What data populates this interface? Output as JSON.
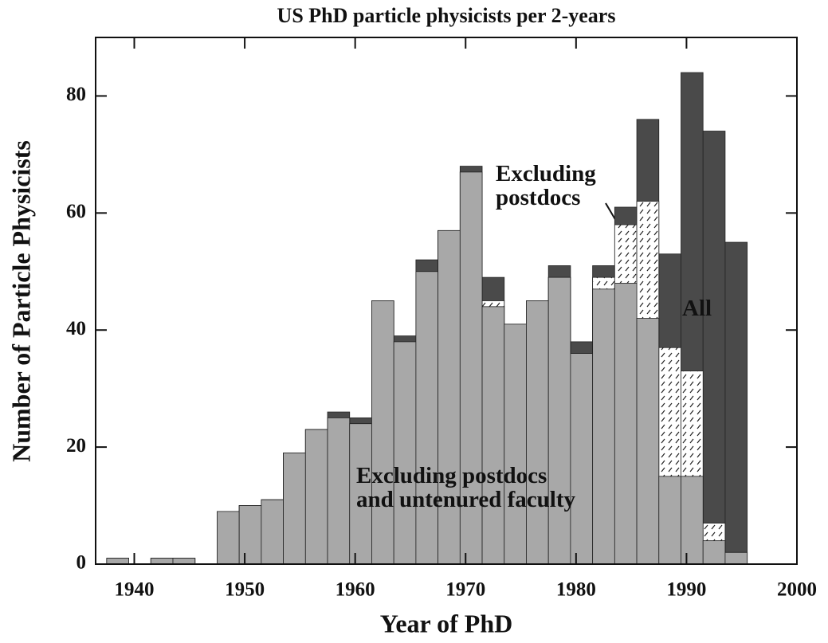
{
  "chart_data": {
    "type": "histogram",
    "title": "US PhD particle physicists per 2-years",
    "xlabel": "Year of PhD",
    "ylabel": "Number of Particle Physicists",
    "bins": [
      1937.5,
      1939.5,
      1941.5,
      1943.5,
      1945.5,
      1947.5,
      1949.5,
      1951.5,
      1953.5,
      1955.5,
      1957.5,
      1959.5,
      1961.5,
      1963.5,
      1965.5,
      1967.5,
      1969.5,
      1971.5,
      1973.5,
      1975.5,
      1977.5,
      1979.5,
      1981.5,
      1983.5,
      1985.5,
      1987.5,
      1989.5,
      1991.5,
      1993.5,
      1995.5
    ],
    "series": [
      {
        "name": "All",
        "color": "#4a4a4a",
        "hatch": false,
        "values": [
          1,
          0,
          1,
          1,
          0,
          9,
          10,
          11,
          19,
          23,
          26,
          25,
          45,
          39,
          52,
          57,
          68,
          49,
          41,
          45,
          51,
          38,
          51,
          61,
          76,
          53,
          84,
          74,
          55
        ]
      },
      {
        "name": "Excluding postdocs",
        "color": "#ffffff",
        "hatch": true,
        "values": [
          1,
          0,
          1,
          1,
          0,
          9,
          10,
          11,
          19,
          23,
          25,
          24,
          45,
          38,
          50,
          57,
          67,
          45,
          41,
          45,
          49,
          36,
          49,
          58,
          62,
          37,
          33,
          7,
          2
        ]
      },
      {
        "name": "Excluding postdocs and untenured faculty",
        "color": "#a8a8a8",
        "hatch": false,
        "values": [
          1,
          0,
          1,
          1,
          0,
          9,
          10,
          11,
          19,
          23,
          25,
          24,
          45,
          38,
          50,
          57,
          67,
          44,
          41,
          45,
          49,
          36,
          47,
          48,
          42,
          15,
          15,
          4,
          2
        ]
      }
    ],
    "xlim": [
      1936.5,
      2000
    ],
    "ylim": [
      0,
      90
    ],
    "xticks": [
      1940,
      1950,
      1960,
      1970,
      1980,
      1990,
      2000
    ],
    "yticks": [
      0,
      20,
      40,
      60,
      80
    ]
  }
}
